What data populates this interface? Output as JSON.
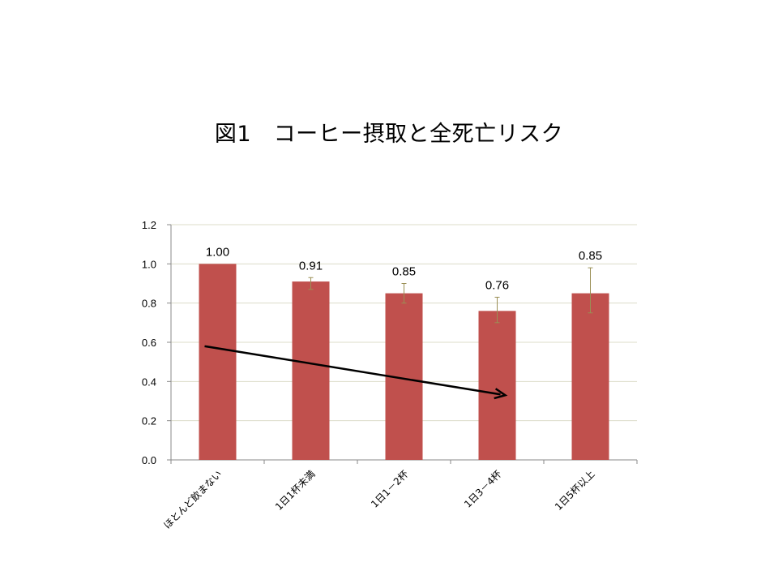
{
  "title": "図1　コーヒー摂取と全死亡リスク",
  "chart_data": {
    "type": "bar",
    "categories": [
      "ほとんど飲まない",
      "1日1杯未満",
      "1日1－2杯",
      "1日3－4杯",
      "1日5杯以上"
    ],
    "values": [
      1.0,
      0.91,
      0.85,
      0.76,
      0.85
    ],
    "data_labels": [
      "1.00",
      "0.91",
      "0.85",
      "0.76",
      "0.85"
    ],
    "error_low": [
      1.0,
      0.87,
      0.8,
      0.7,
      0.75
    ],
    "error_high": [
      1.0,
      0.93,
      0.9,
      0.83,
      0.98
    ],
    "ylim": [
      0,
      1.2
    ],
    "yticks": [
      "0.0",
      "0.2",
      "0.4",
      "0.6",
      "0.8",
      "1.0",
      "1.2"
    ],
    "grid": true,
    "colors": {
      "bar": "#c0504d",
      "error": "#9a8f55",
      "grid": "#dcdcc8",
      "arrow": "#000000"
    },
    "arrow": {
      "from": {
        "category": 0,
        "y": 0.58
      },
      "to": {
        "category": 3,
        "y": 0.33
      }
    }
  }
}
